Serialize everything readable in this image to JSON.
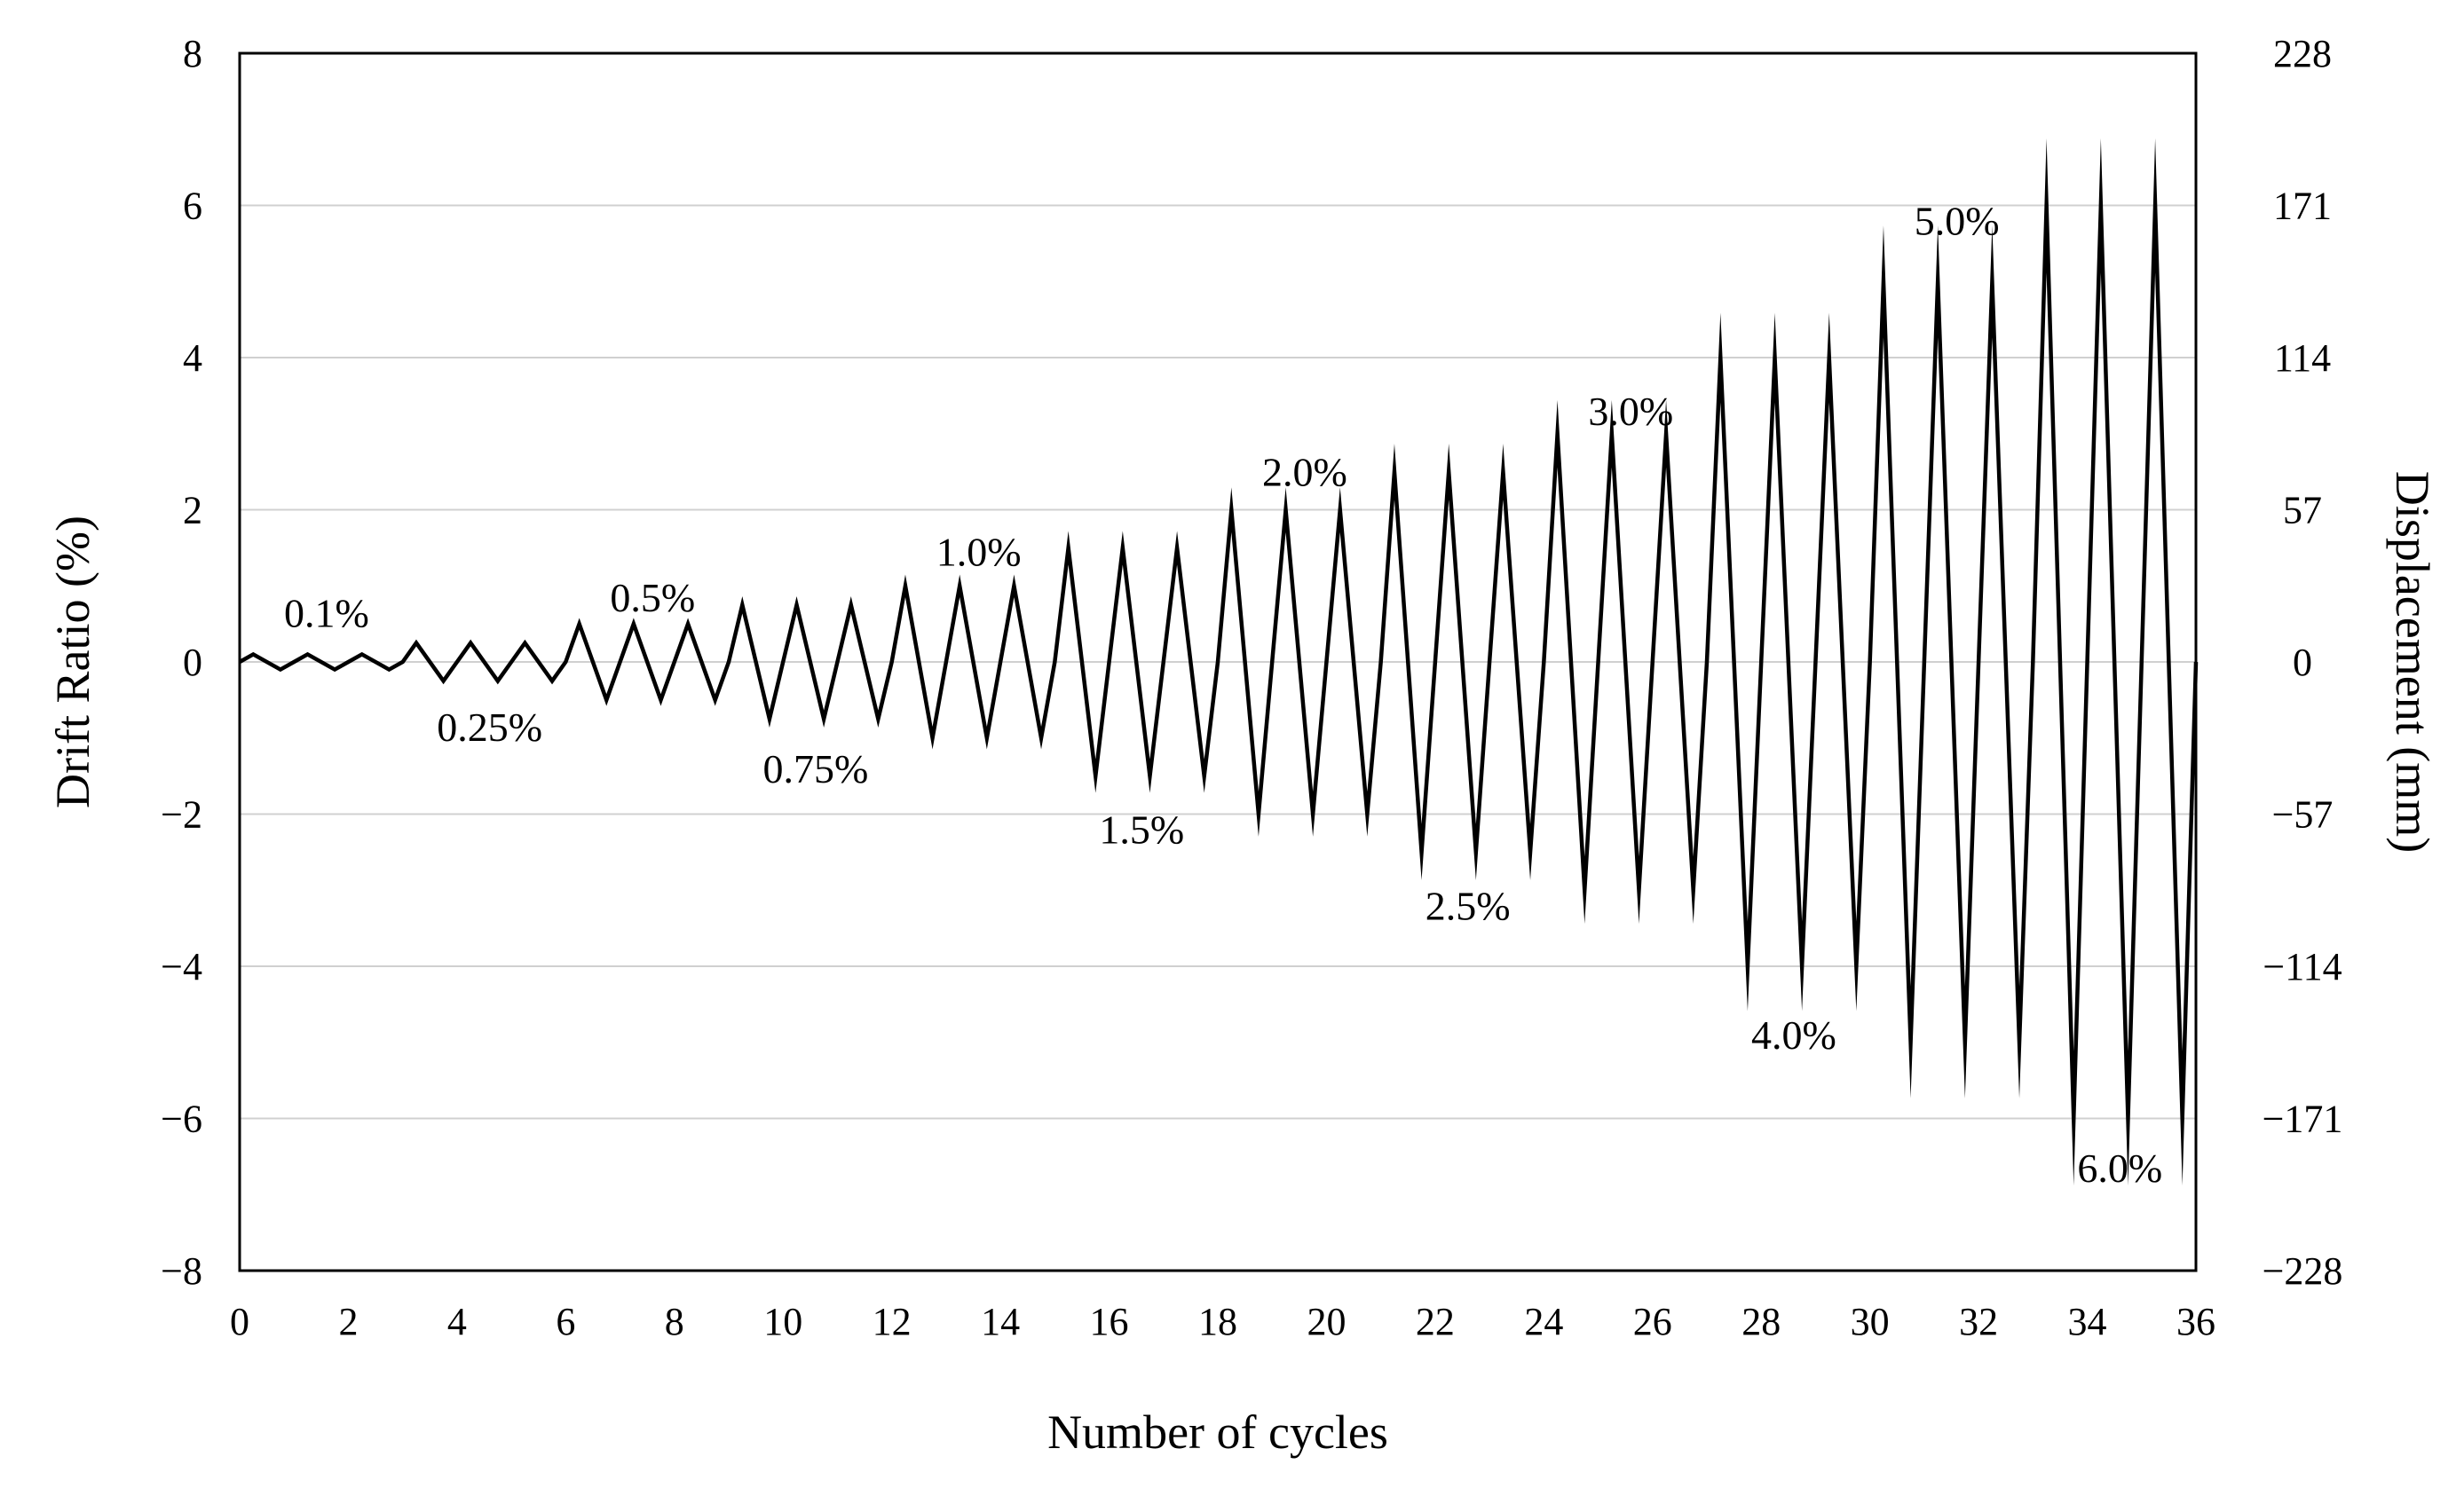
{
  "chart_data": {
    "type": "line",
    "title": "",
    "xlabel": "Number of cycles",
    "ylabel": "Drift Ratio (%)",
    "y2label": "Displacement (mm)",
    "xlim": [
      0,
      36
    ],
    "ylim": [
      -8,
      8
    ],
    "x_ticks": [
      "0",
      "2",
      "4",
      "6",
      "8",
      "10",
      "12",
      "14",
      "16",
      "18",
      "20",
      "22",
      "24",
      "26",
      "28",
      "30",
      "32",
      "34",
      "36"
    ],
    "y_ticks": [
      "8",
      "6",
      "4",
      "2",
      "0",
      "−2",
      "−4",
      "−6",
      "−8"
    ],
    "y2_ticks": [
      "228",
      "171",
      "114",
      "57",
      "0",
      "−57",
      "−114",
      "−171",
      "−228"
    ],
    "grid": "horizontal",
    "line_color": "#000000",
    "grid_color": "#d0d0d0",
    "series": [
      {
        "name": "Drift Ratio",
        "amplitudes": [
          0.1,
          0.1,
          0.1,
          0.25,
          0.25,
          0.25,
          0.5,
          0.5,
          0.5,
          0.75,
          0.75,
          0.75,
          1.0,
          1.0,
          1.0,
          1.5,
          1.5,
          1.5,
          2.0,
          2.0,
          2.0,
          2.5,
          2.5,
          2.5,
          3.0,
          3.0,
          3.0,
          4.0,
          4.0,
          4.0,
          5.0,
          5.0,
          5.0,
          6.0,
          6.0,
          6.0
        ],
        "cycle_pattern": "start 0 at cycle n, peak +A at n+0.25, trough -A at n+0.75, back to 0 at n+1"
      }
    ],
    "annotations": [
      {
        "text": "0.1%",
        "x": 1.6,
        "y": 0.65
      },
      {
        "text": "0.25%",
        "x": 4.6,
        "y": -0.85
      },
      {
        "text": "0.5%",
        "x": 7.6,
        "y": 0.85
      },
      {
        "text": "0.75%",
        "x": 10.6,
        "y": -1.4
      },
      {
        "text": "1.0%",
        "x": 13.6,
        "y": 1.45
      },
      {
        "text": "1.5%",
        "x": 16.6,
        "y": -2.2
      },
      {
        "text": "2.0%",
        "x": 19.6,
        "y": 2.5
      },
      {
        "text": "2.5%",
        "x": 22.6,
        "y": -3.2
      },
      {
        "text": "3.0%",
        "x": 25.6,
        "y": 3.3
      },
      {
        "text": "4.0%",
        "x": 28.6,
        "y": -4.9
      },
      {
        "text": "5.0%",
        "x": 31.6,
        "y": 5.8
      },
      {
        "text": "6.0%",
        "x": 34.6,
        "y": -6.65
      }
    ]
  }
}
